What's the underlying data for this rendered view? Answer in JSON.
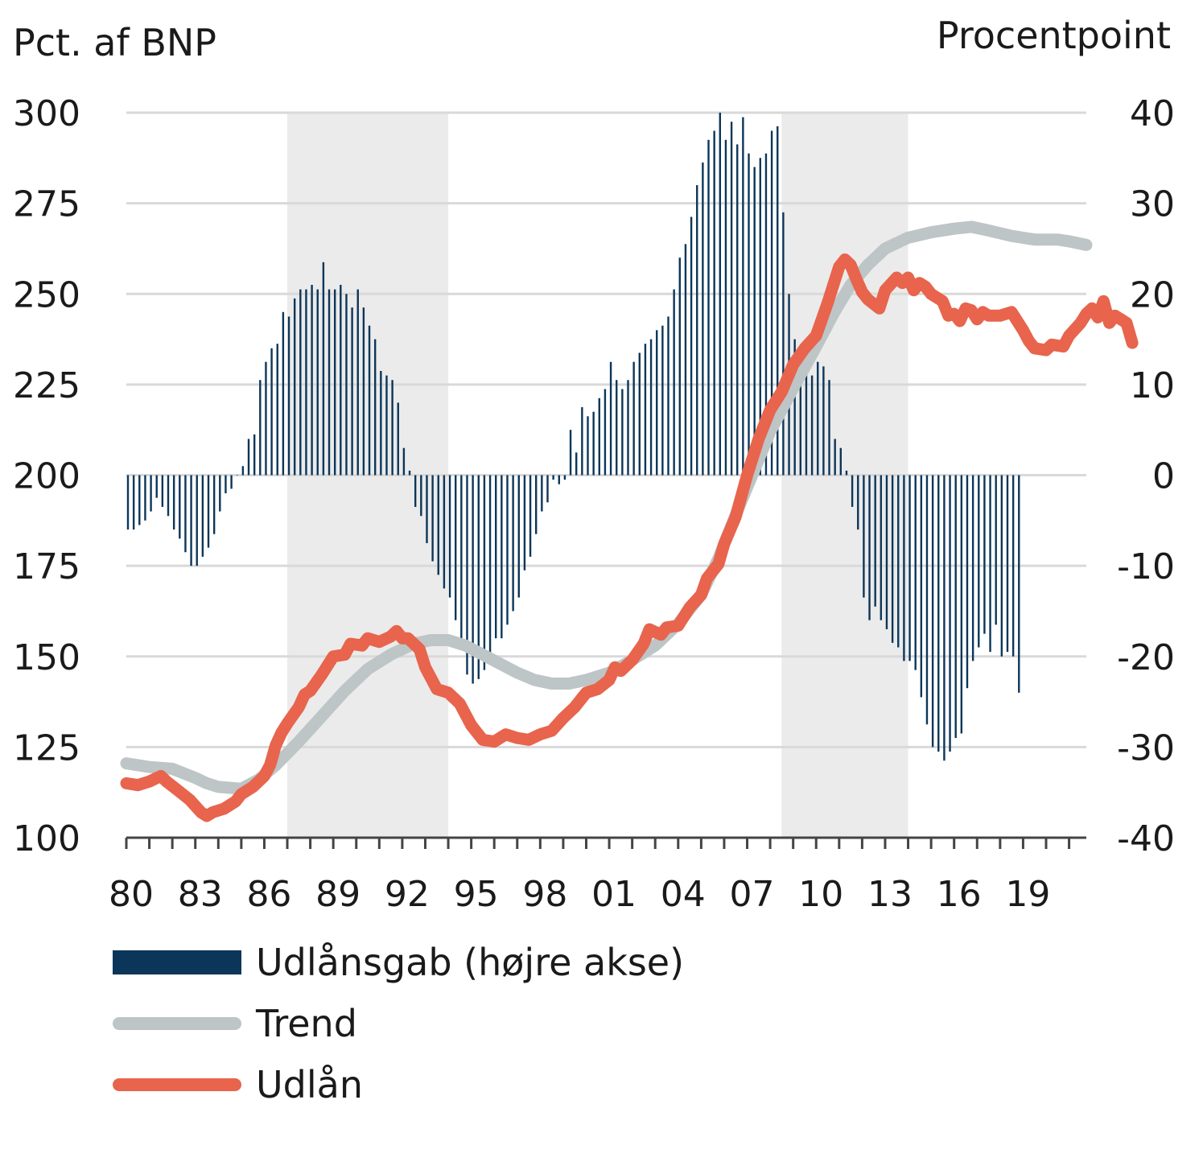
{
  "chart_data": {
    "type": "bar+line",
    "left_axis_unit": "Pct. af BNP",
    "right_axis_unit": "Procentpoint",
    "left_axis": {
      "range": [
        100,
        300
      ],
      "ticks": [
        "300",
        "275",
        "250",
        "225",
        "200",
        "175",
        "150",
        "125",
        "100"
      ]
    },
    "right_axis": {
      "range": [
        -40,
        40
      ],
      "ticks": [
        "40",
        "30",
        "20",
        "10",
        "0",
        "-10",
        "-20",
        "-30",
        "-40"
      ]
    },
    "x_axis": {
      "range": [
        1980,
        2021.75
      ],
      "ticks": [
        "80",
        "83",
        "86",
        "89",
        "92",
        "95",
        "98",
        "01",
        "04",
        "07",
        "10",
        "13",
        "16",
        "19"
      ]
    },
    "grid": "horizontal",
    "shaded_periods": [
      [
        1987.0,
        1994.0
      ],
      [
        2008.5,
        2014.0
      ]
    ],
    "colors": {
      "udlaansgab": "#0c3659",
      "trend": "#bdc5c6",
      "udlaan": "#e8644d",
      "shading": "#ebebeb",
      "grid": "#d9d9d9"
    },
    "legend": [
      {
        "key": "udlaansgab",
        "label": "Udlånsgab (højre akse)"
      },
      {
        "key": "trend",
        "label": "Trend"
      },
      {
        "key": "udlaan",
        "label": "Udlån"
      }
    ],
    "series": [
      {
        "name": "Udlånsgab (højre akse)",
        "type": "bar",
        "axis": "right",
        "start": 1980.0,
        "step": 0.25,
        "values": [
          -6.0,
          -6.0,
          -5.5,
          -5.0,
          -4.0,
          -2.5,
          -3.5,
          -4.5,
          -6.0,
          -7.0,
          -8.5,
          -10.0,
          -10.0,
          -9.0,
          -8.0,
          -6.5,
          -4.0,
          -2.0,
          -1.5,
          0.0,
          1.0,
          4.0,
          4.5,
          10.5,
          12.5,
          14.0,
          14.5,
          18.0,
          17.5,
          19.5,
          20.5,
          20.5,
          21.0,
          20.5,
          23.5,
          20.5,
          20.5,
          21.0,
          20.0,
          18.5,
          20.5,
          18.5,
          16.5,
          15.0,
          11.5,
          11.0,
          10.5,
          8.0,
          3.0,
          0.5,
          -3.5,
          -4.5,
          -7.5,
          -9.5,
          -11.0,
          -12.5,
          -13.5,
          -16.0,
          -18.0,
          -22.0,
          -23.0,
          -22.5,
          -21.5,
          -20.0,
          -18.0,
          -18.0,
          -16.5,
          -15.0,
          -13.5,
          -10.5,
          -9.0,
          -6.5,
          -4.0,
          -3.0,
          -0.5,
          -1.0,
          -0.5,
          5.0,
          2.5,
          7.5,
          6.5,
          7.0,
          8.5,
          9.5,
          12.5,
          10.5,
          9.5,
          10.5,
          12.5,
          13.5,
          14.5,
          15.0,
          16.0,
          16.5,
          17.5,
          20.5,
          24.0,
          25.5,
          28.5,
          32.0,
          34.5,
          37.0,
          38.0,
          40.0,
          37.0,
          39.0,
          36.5,
          39.5,
          35.5,
          34.0,
          35.0,
          35.5,
          38.0,
          38.5,
          29.0,
          20.0,
          15.0,
          13.0,
          12.0,
          11.0,
          12.5,
          12.0,
          10.5,
          4.0,
          3.0,
          0.5,
          -3.5,
          -6.0,
          -13.5,
          -16.0,
          -14.5,
          -16.0,
          -17.0,
          -18.5,
          -19.0,
          -20.5,
          -20.5,
          -21.5,
          -24.5,
          -27.5,
          -30.0,
          -30.5,
          -31.5,
          -30.5,
          -29.0,
          -28.5,
          -23.5,
          -20.5,
          -19.0,
          -17.5,
          -19.5,
          -16.5,
          -20.0,
          -19.5,
          -20.0,
          -24.0
        ]
      },
      {
        "name": "Trend",
        "type": "line",
        "axis": "left",
        "points": [
          [
            1980.0,
            120.5
          ],
          [
            1981.0,
            119.5
          ],
          [
            1982.0,
            119.0
          ],
          [
            1983.0,
            116.5
          ],
          [
            1983.5,
            115.0
          ],
          [
            1984.0,
            114.0
          ],
          [
            1985.0,
            113.5
          ],
          [
            1985.75,
            116.0
          ],
          [
            1986.5,
            120.0
          ],
          [
            1987.5,
            126.5
          ],
          [
            1988.5,
            133.5
          ],
          [
            1989.5,
            140.5
          ],
          [
            1990.5,
            146.5
          ],
          [
            1991.5,
            150.5
          ],
          [
            1992.5,
            153.5
          ],
          [
            1993.25,
            154.5
          ],
          [
            1994.0,
            154.5
          ],
          [
            1994.75,
            153.0
          ],
          [
            1995.5,
            150.5
          ],
          [
            1996.25,
            148.0
          ],
          [
            1997.0,
            145.5
          ],
          [
            1997.75,
            143.5
          ],
          [
            1998.5,
            142.5
          ],
          [
            1999.25,
            142.5
          ],
          [
            2000.0,
            143.5
          ],
          [
            2001.0,
            145.5
          ],
          [
            2002.0,
            149.0
          ],
          [
            2003.0,
            153.0
          ],
          [
            2004.0,
            159.0
          ],
          [
            2005.0,
            167.0
          ],
          [
            2005.75,
            177.0
          ],
          [
            2006.5,
            189.0
          ],
          [
            2007.25,
            200.5
          ],
          [
            2008.0,
            212.0
          ],
          [
            2009.0,
            224.0
          ],
          [
            2010.0,
            235.5
          ],
          [
            2010.75,
            244.5
          ],
          [
            2011.5,
            252.5
          ],
          [
            2012.25,
            258.0
          ],
          [
            2013.0,
            262.5
          ],
          [
            2014.0,
            265.5
          ],
          [
            2015.0,
            267.0
          ],
          [
            2016.0,
            268.0
          ],
          [
            2016.75,
            268.5
          ],
          [
            2017.5,
            267.5
          ],
          [
            2018.5,
            266.0
          ],
          [
            2019.5,
            265.0
          ],
          [
            2020.5,
            265.0
          ],
          [
            2021.0,
            264.5
          ],
          [
            2021.75,
            263.5
          ]
        ]
      },
      {
        "name": "Udlån",
        "type": "line",
        "axis": "left",
        "points": [
          [
            1980.0,
            115.0
          ],
          [
            1980.5,
            114.5
          ],
          [
            1981.0,
            115.5
          ],
          [
            1981.5,
            117.0
          ],
          [
            1981.75,
            115.5
          ],
          [
            1982.25,
            113.0
          ],
          [
            1982.75,
            110.5
          ],
          [
            1983.25,
            107.0
          ],
          [
            1983.5,
            106.0
          ],
          [
            1983.75,
            107.0
          ],
          [
            1984.25,
            108.0
          ],
          [
            1984.75,
            110.0
          ],
          [
            1985.0,
            112.0
          ],
          [
            1985.5,
            114.0
          ],
          [
            1986.0,
            117.0
          ],
          [
            1986.25,
            120.0
          ],
          [
            1986.5,
            125.5
          ],
          [
            1986.75,
            129.0
          ],
          [
            1987.0,
            131.5
          ],
          [
            1987.5,
            136.0
          ],
          [
            1987.75,
            139.5
          ],
          [
            1988.0,
            140.5
          ],
          [
            1988.5,
            145.0
          ],
          [
            1989.0,
            150.0
          ],
          [
            1989.5,
            150.5
          ],
          [
            1989.75,
            153.5
          ],
          [
            1990.25,
            153.0
          ],
          [
            1990.5,
            155.0
          ],
          [
            1991.0,
            154.0
          ],
          [
            1991.5,
            155.5
          ],
          [
            1991.75,
            157.0
          ],
          [
            1992.0,
            155.0
          ],
          [
            1992.25,
            155.0
          ],
          [
            1992.75,
            152.0
          ],
          [
            1993.0,
            147.0
          ],
          [
            1993.5,
            141.0
          ],
          [
            1994.0,
            140.0
          ],
          [
            1994.5,
            137.0
          ],
          [
            1995.0,
            131.0
          ],
          [
            1995.5,
            127.0
          ],
          [
            1996.0,
            126.5
          ],
          [
            1996.5,
            128.5
          ],
          [
            1997.0,
            127.5
          ],
          [
            1997.5,
            127.0
          ],
          [
            1998.0,
            128.5
          ],
          [
            1998.5,
            129.5
          ],
          [
            1999.0,
            133.0
          ],
          [
            1999.5,
            136.0
          ],
          [
            2000.0,
            140.0
          ],
          [
            2000.5,
            141.0
          ],
          [
            2001.0,
            143.5
          ],
          [
            2001.25,
            147.0
          ],
          [
            2001.5,
            146.0
          ],
          [
            2002.0,
            149.0
          ],
          [
            2002.5,
            153.5
          ],
          [
            2002.75,
            157.5
          ],
          [
            2003.25,
            156.0
          ],
          [
            2003.5,
            158.0
          ],
          [
            2004.0,
            158.5
          ],
          [
            2004.5,
            163.5
          ],
          [
            2005.0,
            167.0
          ],
          [
            2005.25,
            171.5
          ],
          [
            2005.75,
            175.5
          ],
          [
            2006.0,
            181.0
          ],
          [
            2006.5,
            188.5
          ],
          [
            2007.0,
            200.0
          ],
          [
            2007.5,
            210.0
          ],
          [
            2008.0,
            218.0
          ],
          [
            2008.5,
            223.0
          ],
          [
            2009.0,
            230.5
          ],
          [
            2009.5,
            235.0
          ],
          [
            2010.0,
            238.5
          ],
          [
            2010.5,
            247.5
          ],
          [
            2011.0,
            257.5
          ],
          [
            2011.25,
            259.5
          ],
          [
            2011.5,
            258.0
          ],
          [
            2011.75,
            254.0
          ],
          [
            2012.0,
            250.5
          ],
          [
            2012.25,
            248.5
          ],
          [
            2012.75,
            246.0
          ],
          [
            2013.0,
            251.0
          ],
          [
            2013.5,
            254.5
          ],
          [
            2013.75,
            253.0
          ],
          [
            2014.0,
            254.5
          ],
          [
            2014.25,
            251.0
          ],
          [
            2014.5,
            253.0
          ],
          [
            2014.75,
            252.0
          ],
          [
            2015.0,
            250.0
          ],
          [
            2015.5,
            248.0
          ],
          [
            2015.75,
            244.0
          ],
          [
            2016.0,
            244.5
          ],
          [
            2016.25,
            242.5
          ],
          [
            2016.5,
            246.0
          ],
          [
            2016.75,
            245.5
          ],
          [
            2017.0,
            243.0
          ],
          [
            2017.25,
            245.0
          ],
          [
            2017.5,
            244.0
          ],
          [
            2018.0,
            244.0
          ],
          [
            2018.5,
            245.0
          ],
          [
            2019.0,
            240.0
          ],
          [
            2019.25,
            237.0
          ],
          [
            2019.5,
            235.0
          ],
          [
            2020.0,
            234.5
          ],
          [
            2020.25,
            236.0
          ],
          [
            2020.75,
            235.5
          ],
          [
            2021.0,
            238.5
          ],
          [
            2021.5,
            242.0
          ],
          [
            2021.75,
            244.5
          ],
          [
            2022.0,
            246.0
          ],
          [
            2022.25,
            243.5
          ],
          [
            2022.5,
            248.0
          ],
          [
            2022.75,
            242.0
          ],
          [
            2023.0,
            244.0
          ],
          [
            2023.5,
            242.0
          ],
          [
            2023.75,
            236.5
          ]
        ]
      }
    ]
  }
}
